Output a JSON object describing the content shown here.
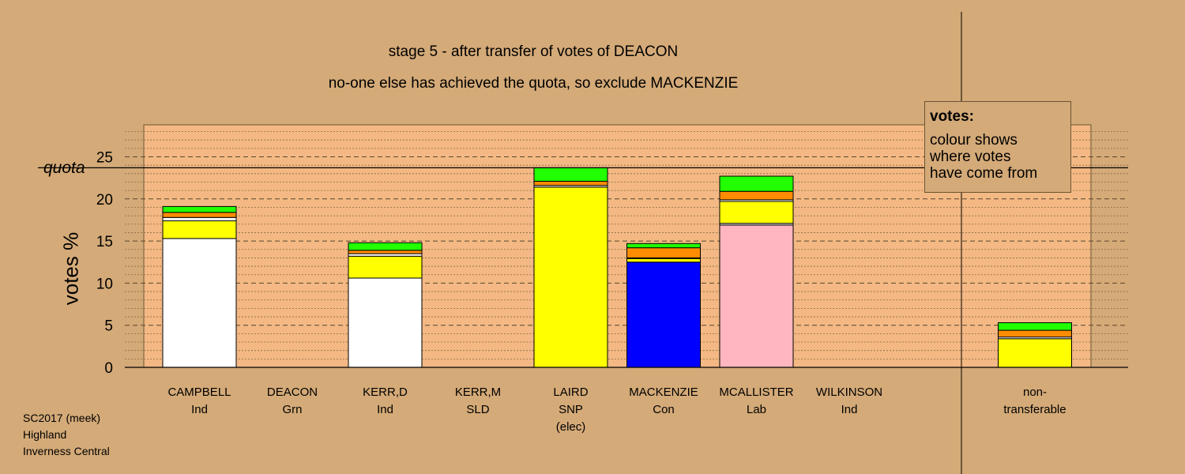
{
  "header": {
    "title": "stage 5 - after transfer of votes of DEACON",
    "subtitle": "no-one else has achieved the quota, so exclude MACKENZIE"
  },
  "legend": {
    "title": "votes:",
    "body": "colour shows\nwhere votes\nhave come from"
  },
  "footer": {
    "line1": "SC2017 (meek)",
    "line2": "Highland",
    "line3": "Inverness Central"
  },
  "chart_data": {
    "type": "bar",
    "stacked": true,
    "ylabel": "votes %",
    "ylim": [
      0,
      28.8
    ],
    "yticks": [
      0,
      5,
      10,
      15,
      20,
      25
    ],
    "grid": true,
    "quota": 23.7,
    "quota_label": "quota",
    "candidates": [
      {
        "name": "CAMPBELL",
        "party": "Ind",
        "note": "",
        "segments": [
          {
            "color": "#ffffff",
            "value": 15.3
          },
          {
            "color": "#ffff00",
            "value": 2.1
          },
          {
            "color": "#ffffff",
            "value": 0.4
          },
          {
            "color": "#ff8c00",
            "value": 0.6
          },
          {
            "color": "#22ff00",
            "value": 0.7
          }
        ]
      },
      {
        "name": "DEACON",
        "party": "Grn",
        "note": "",
        "segments": []
      },
      {
        "name": "KERR,D",
        "party": "Ind",
        "note": "",
        "segments": [
          {
            "color": "#ffffff",
            "value": 10.6
          },
          {
            "color": "#ffff00",
            "value": 2.6
          },
          {
            "color": "#ffffff",
            "value": 0.3
          },
          {
            "color": "#ff8c00",
            "value": 0.4
          },
          {
            "color": "#22ff00",
            "value": 0.9
          }
        ]
      },
      {
        "name": "KERR,M",
        "party": "SLD",
        "note": "",
        "segments": []
      },
      {
        "name": "LAIRD",
        "party": "SNP",
        "note": "(elec)",
        "segments": [
          {
            "color": "#ffff00",
            "value": 21.4
          },
          {
            "color": "#ffffff",
            "value": 0.2
          },
          {
            "color": "#ff8c00",
            "value": 0.5
          },
          {
            "color": "#22ff00",
            "value": 1.6
          }
        ]
      },
      {
        "name": "MACKENZIE",
        "party": "Con",
        "note": "",
        "segments": [
          {
            "color": "#0000ff",
            "value": 12.5
          },
          {
            "color": "#ffff00",
            "value": 0.4
          },
          {
            "color": "#ffffff",
            "value": 0.1
          },
          {
            "color": "#ff8c00",
            "value": 1.2
          },
          {
            "color": "#22ff00",
            "value": 0.5
          }
        ]
      },
      {
        "name": "MCALLISTER",
        "party": "Lab",
        "note": "",
        "segments": [
          {
            "color": "#ffb6c1",
            "value": 16.9
          },
          {
            "color": "#ffffff",
            "value": 0.2
          },
          {
            "color": "#ffff00",
            "value": 2.6
          },
          {
            "color": "#ffffff",
            "value": 0.2
          },
          {
            "color": "#ff8c00",
            "value": 1.0
          },
          {
            "color": "#22ff00",
            "value": 1.8
          }
        ]
      },
      {
        "name": "WILKINSON",
        "party": "Ind",
        "note": "",
        "segments": []
      },
      {
        "name": "non-",
        "party": "transferable",
        "note": "",
        "segments": [
          {
            "color": "#ffff00",
            "value": 3.4
          },
          {
            "color": "#ffffff",
            "value": 0.2
          },
          {
            "color": "#ff8c00",
            "value": 0.8
          },
          {
            "color": "#22ff00",
            "value": 0.9
          }
        ]
      }
    ],
    "colors": {
      "background": "#d4aa78",
      "plot_background": "#f3b883"
    }
  }
}
